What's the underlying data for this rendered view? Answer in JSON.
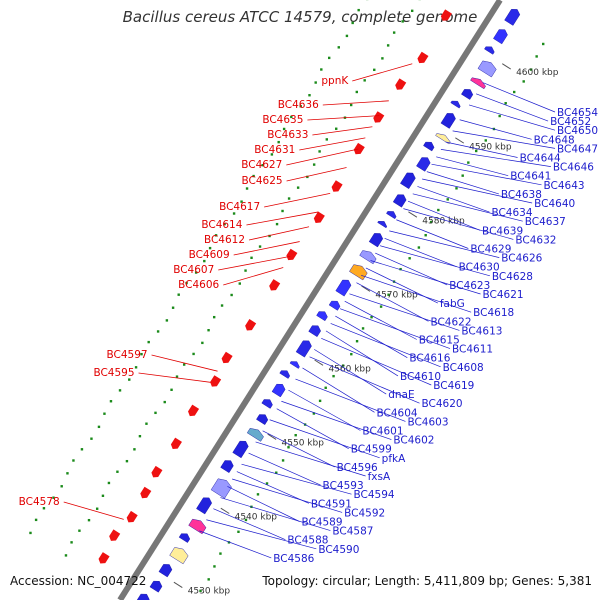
{
  "title": "Bacillus cereus ATCC 14579, complete genome",
  "footer": {
    "accession": "Accession: NC_004722",
    "topology": "Topology: circular; Length: 5,411,809 bp; Genes: 5,381"
  },
  "ticks": [
    {
      "label": "4530 kbp",
      "kbp": 4530
    },
    {
      "label": "4540 kbp",
      "kbp": 4540
    },
    {
      "label": "4550 kbp",
      "kbp": 4550
    },
    {
      "label": "4560 kbp",
      "kbp": 4560
    },
    {
      "label": "4570 kbp",
      "kbp": 4570
    },
    {
      "label": "4580 kbp",
      "kbp": 4580
    },
    {
      "label": "4590 kbp",
      "kbp": 4590
    },
    {
      "label": "4600 kbp",
      "kbp": 4600
    }
  ],
  "genes_left": [
    {
      "name": "ppnK",
      "kbp": 4594.5
    },
    {
      "name": "BC4636",
      "kbp": 4589.5
    },
    {
      "name": "BC4635",
      "kbp": 4587.5
    },
    {
      "name": "BC4633",
      "kbp": 4586.0
    },
    {
      "name": "BC4631",
      "kbp": 4584.5
    },
    {
      "name": "BC4627",
      "kbp": 4583.0
    },
    {
      "name": "BC4625",
      "kbp": 4580.5
    },
    {
      "name": "BC4617",
      "kbp": 4577.0
    },
    {
      "name": "BC4614",
      "kbp": 4574.5
    },
    {
      "name": "BC4612",
      "kbp": 4572.5
    },
    {
      "name": "BC4609",
      "kbp": 4570.5
    },
    {
      "name": "BC4607",
      "kbp": 4568.5
    },
    {
      "name": "BC4606",
      "kbp": 4567.0
    },
    {
      "name": "BC4597",
      "kbp": 4553.0
    },
    {
      "name": "BC4595",
      "kbp": 4551.5
    },
    {
      "name": "BC4578",
      "kbp": 4533.0
    }
  ],
  "genes_right": [
    {
      "name": "BC4654",
      "kbp": 4597.0
    },
    {
      "name": "BC4652",
      "kbp": 4595.5
    },
    {
      "name": "BC4650",
      "kbp": 4594.0
    },
    {
      "name": "BC4648",
      "kbp": 4592.0
    },
    {
      "name": "BC4647",
      "kbp": 4590.5
    },
    {
      "name": "BC4644",
      "kbp": 4589.0
    },
    {
      "name": "BC4646",
      "kbp": 4588.0
    },
    {
      "name": "BC4641",
      "kbp": 4587.0
    },
    {
      "name": "BC4643",
      "kbp": 4586.0
    },
    {
      "name": "BC4638",
      "kbp": 4585.0
    },
    {
      "name": "BC4640",
      "kbp": 4584.0
    },
    {
      "name": "BC4634",
      "kbp": 4583.0
    },
    {
      "name": "BC4637",
      "kbp": 4582.0
    },
    {
      "name": "BC4639",
      "kbp": 4581.0
    },
    {
      "name": "BC4632",
      "kbp": 4580.0
    },
    {
      "name": "BC4629",
      "kbp": 4578.5
    },
    {
      "name": "BC4626",
      "kbp": 4577.0
    },
    {
      "name": "BC4630",
      "kbp": 4576.0
    },
    {
      "name": "BC4628",
      "kbp": 4575.0
    },
    {
      "name": "BC4623",
      "kbp": 4574.0
    },
    {
      "name": "BC4621",
      "kbp": 4573.0
    },
    {
      "name": "fabG",
      "kbp": 4572.0
    },
    {
      "name": "BC4618",
      "kbp": 4571.0
    },
    {
      "name": "BC4622",
      "kbp": 4570.0
    },
    {
      "name": "BC4613",
      "kbp": 4568.5
    },
    {
      "name": "BC4615",
      "kbp": 4567.5
    },
    {
      "name": "BC4611",
      "kbp": 4566.5
    },
    {
      "name": "BC4616",
      "kbp": 4565.5
    },
    {
      "name": "BC4608",
      "kbp": 4564.5
    },
    {
      "name": "BC4610",
      "kbp": 4563.5
    },
    {
      "name": "BC4619",
      "kbp": 4562.5
    },
    {
      "name": "dnaE",
      "kbp": 4561.0
    },
    {
      "name": "BC4620",
      "kbp": 4560.0
    },
    {
      "name": "BC4604",
      "kbp": 4558.5
    },
    {
      "name": "BC4603",
      "kbp": 4557.0
    },
    {
      "name": "BC4601",
      "kbp": 4555.5
    },
    {
      "name": "BC4602",
      "kbp": 4554.0
    },
    {
      "name": "BC4599",
      "kbp": 4553.0
    },
    {
      "name": "pfkA",
      "kbp": 4551.5
    },
    {
      "name": "BC4596",
      "kbp": 4550.0
    },
    {
      "name": "fxsA",
      "kbp": 4548.5
    },
    {
      "name": "BC4593",
      "kbp": 4547.0
    },
    {
      "name": "BC4594",
      "kbp": 4545.5
    },
    {
      "name": "BC4591",
      "kbp": 4544.5
    },
    {
      "name": "BC4592",
      "kbp": 4543.5
    },
    {
      "name": "BC4589",
      "kbp": 4542.5
    },
    {
      "name": "BC4587",
      "kbp": 4541.0
    },
    {
      "name": "BC4588",
      "kbp": 4539.5
    },
    {
      "name": "BC4590",
      "kbp": 4538.0
    },
    {
      "name": "BC4586",
      "kbp": 4536.5
    }
  ]
}
